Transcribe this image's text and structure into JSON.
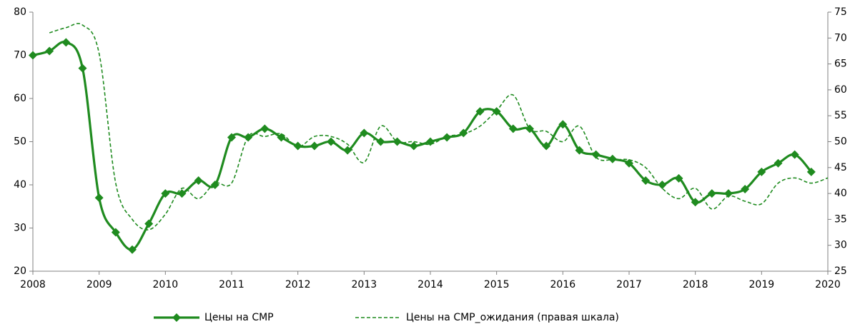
{
  "chart_data": {
    "type": "line",
    "series": [
      {
        "name": "Цены на СМР",
        "color": "#1f8b1f",
        "axis": "y",
        "x": [
          2008,
          2008.25,
          2008.5,
          2008.75,
          2009,
          2009.25,
          2009.5,
          2009.75,
          2010,
          2010.25,
          2010.5,
          2010.75,
          2011,
          2011.25,
          2011.5,
          2011.75,
          2012,
          2012.25,
          2012.5,
          2012.75,
          2013,
          2013.25,
          2013.5,
          2013.75,
          2014,
          2014.25,
          2014.5,
          2014.75,
          2015,
          2015.25,
          2015.5,
          2015.75,
          2016,
          2016.25,
          2016.5,
          2016.75,
          2017,
          2017.25,
          2017.5,
          2017.75,
          2018,
          2018.25,
          2018.5,
          2018.75,
          2019,
          2019.25,
          2019.5,
          2019.75
        ],
        "values": [
          70,
          71,
          73,
          67,
          37,
          29,
          25,
          31,
          38,
          38,
          41,
          40,
          51,
          51,
          53,
          51,
          49,
          49,
          50,
          48,
          52,
          50,
          50,
          49,
          50,
          51,
          52,
          57,
          57,
          53,
          53,
          49,
          54,
          48,
          47,
          46,
          45,
          41,
          40,
          41.5,
          36,
          38,
          38,
          39,
          43,
          45,
          47,
          43
        ]
      },
      {
        "name": "Цены на СМР_ожидания (правая шкала)",
        "color": "#1f8b1f",
        "axis": "y2",
        "x": [
          2008.25,
          2008.5,
          2008.75,
          2009,
          2009.25,
          2009.5,
          2009.75,
          2010,
          2010.25,
          2010.5,
          2010.75,
          2011,
          2011.25,
          2011.5,
          2011.75,
          2012,
          2012.25,
          2012.5,
          2012.75,
          2013,
          2013.25,
          2013.5,
          2013.75,
          2014,
          2014.25,
          2014.5,
          2014.75,
          2015,
          2015.25,
          2015.5,
          2015.75,
          2016,
          2016.25,
          2016.5,
          2016.75,
          2017,
          2017.25,
          2017.5,
          2017.75,
          2018,
          2018.25,
          2018.5,
          2018.75,
          2019,
          2019.25,
          2019.5,
          2019.75,
          2020
        ],
        "values": [
          71,
          72,
          72.5,
          67,
          42,
          35,
          33,
          36,
          41,
          39,
          42,
          42,
          51,
          51,
          51.5,
          49,
          51,
          51,
          49.5,
          46,
          53,
          50,
          50,
          49.5,
          51,
          51.5,
          53,
          56,
          59,
          52.5,
          52,
          50,
          53,
          47,
          46.5,
          46.5,
          45,
          41,
          39,
          41,
          37,
          39.5,
          38.5,
          38,
          42,
          43,
          42,
          43
        ]
      }
    ],
    "xlim": [
      2008,
      2020
    ],
    "xticks": [
      2008,
      2009,
      2010,
      2011,
      2012,
      2013,
      2014,
      2015,
      2016,
      2017,
      2018,
      2019,
      2020
    ],
    "ylim": [
      20,
      80
    ],
    "yticks": [
      20,
      30,
      40,
      50,
      60,
      70,
      80
    ],
    "y2lim": [
      25,
      75
    ],
    "y2ticks": [
      25,
      30,
      35,
      40,
      45,
      50,
      55,
      60,
      65,
      70,
      75
    ],
    "grid": false
  }
}
